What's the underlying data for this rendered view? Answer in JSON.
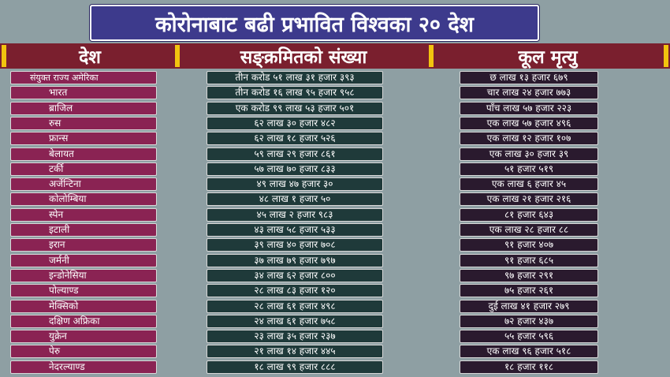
{
  "title": "कोरोनाबाट बढी प्रभावित विश्वका २० देश",
  "headers": {
    "country": "देश",
    "cases": "सङ्क्रमितको संख्या",
    "deaths": "कूल मृत्यु"
  },
  "colors": {
    "background": "#8e9fa3",
    "title_bg": "#3d3a8c",
    "header_band": "#7a1f2e",
    "header_accent": "#f2c40f",
    "country_cell": "#8a2353",
    "cases_cell": "#1f3a3a",
    "deaths_cell": "#2a1a2e"
  },
  "rows": [
    {
      "country": "संयुक्त राज्य अमेरिका",
      "cases": "तीन करोड ५१ लाख ३१ हजार ३९३",
      "deaths": "छ लाख १३ हजार ६७९"
    },
    {
      "country": "भारत",
      "cases": "तीन करोड १६ लाख ९५ हजार ९५८",
      "deaths": "चार लाख २४ हजार ७७३"
    },
    {
      "country": "ब्राजिल",
      "cases": "एक करोड ९९ लाख ५३ हजार ५०१",
      "deaths": "पाँच लाख ५७ हजार २२३"
    },
    {
      "country": "रुस",
      "cases": "६२ लाख ३० हजार ४८२",
      "deaths": "एक लाख ५७ हजार ४९६"
    },
    {
      "country": "फ्रान्स",
      "cases": "६२ लाख १८ हजार ५२६",
      "deaths": "एक लाख १२ हजार १०७"
    },
    {
      "country": "बेलायत",
      "cases": "५९ लाख २९ हजार ८६१",
      "deaths": "एक लाख ३० हजार ३९"
    },
    {
      "country": "टर्की",
      "cases": "५७ लाख ७० हजार ८३३",
      "deaths": "५१ हजार ५१९"
    },
    {
      "country": "अर्जेन्टिना",
      "cases": "४९ लाख ४७ हजार ३०",
      "deaths": "एक लाख ६ हजार ४५"
    },
    {
      "country": "कोलोम्बिया",
      "cases": "४८ लाख १ हजार ५०",
      "deaths": "एक लाख २१ हजार २१६"
    },
    {
      "country": "स्पेन",
      "cases": "४५ लाख २ हजार ९८३",
      "deaths": "८१ हजार ६४३"
    },
    {
      "country": "इटाली",
      "cases": "४३ लाख ५८ हजार ५३३",
      "deaths": "एक लाख २८ हजार ८८"
    },
    {
      "country": "इरान",
      "cases": "३९ लाख ४० हजार ७०८",
      "deaths": "९१ हजार ४०७"
    },
    {
      "country": "जर्मनी",
      "cases": "३७ लाख ७९ हजार ७९७",
      "deaths": "९१ हजार ६८५"
    },
    {
      "country": "इन्डोनेसिया",
      "cases": "३४ लाख ६२ हजार ८००",
      "deaths": "९७ हजार २९१"
    },
    {
      "country": "पोल्याण्ड",
      "cases": "२८ लाख ८३ हजार १२०",
      "deaths": "७५ हजार २६१"
    },
    {
      "country": "मेक्सिको",
      "cases": "२८ लाख ६१ हजार ४९८",
      "deaths": "दुई लाख ४१ हजार २७९"
    },
    {
      "country": "दक्षिण अफ्रिका",
      "cases": "२४ लाख ६१ हजार ७५८",
      "deaths": "७२ हजार ४३७"
    },
    {
      "country": "युक्रेन",
      "cases": "२३ लाख ३५ हजार २३७",
      "deaths": "५५ हजार ५९६"
    },
    {
      "country": "पेरु",
      "cases": "२१ लाख १४ हजार ४४५",
      "deaths": "एक लाख ९६ हजार ५१८"
    },
    {
      "country": "नेदरल्याण्ड",
      "cases": "१८ लाख ९९ हजार ८८८",
      "deaths": "१८ हजार ११८"
    }
  ]
}
